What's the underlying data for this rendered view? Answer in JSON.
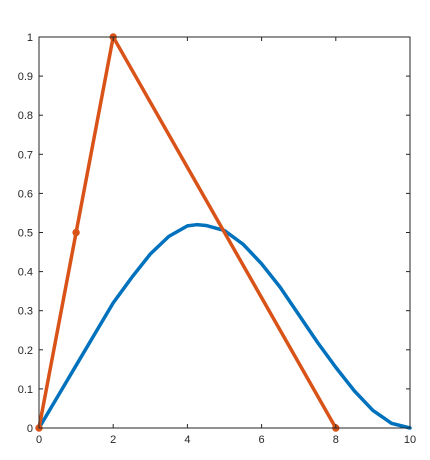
{
  "chart_data": {
    "type": "line",
    "xlim": [
      0,
      10
    ],
    "ylim": [
      0,
      1
    ],
    "xticks": [
      "0",
      "2",
      "4",
      "6",
      "8",
      "10"
    ],
    "yticks": [
      "0",
      "0.1",
      "0.2",
      "0.3",
      "0.4",
      "0.5",
      "0.6",
      "0.7",
      "0.8",
      "0.9",
      "1"
    ],
    "grid": false,
    "series": [
      {
        "color": "#0072BD",
        "markers": false,
        "points": [
          [
            0,
            0
          ],
          [
            0.5,
            0.08
          ],
          [
            1,
            0.16
          ],
          [
            1.5,
            0.24
          ],
          [
            2,
            0.32
          ],
          [
            2.5,
            0.385
          ],
          [
            3,
            0.445
          ],
          [
            3.5,
            0.49
          ],
          [
            4,
            0.517
          ],
          [
            4.25,
            0.52
          ],
          [
            4.5,
            0.518
          ],
          [
            5,
            0.505
          ],
          [
            5.5,
            0.47
          ],
          [
            6,
            0.42
          ],
          [
            6.5,
            0.36
          ],
          [
            7,
            0.29
          ],
          [
            7.5,
            0.22
          ],
          [
            8,
            0.155
          ],
          [
            8.5,
            0.095
          ],
          [
            9,
            0.045
          ],
          [
            9.5,
            0.012
          ],
          [
            10,
            0
          ]
        ]
      },
      {
        "color": "#D95319",
        "markers": true,
        "points": [
          [
            0,
            0
          ],
          [
            1,
            0.5
          ],
          [
            2,
            1
          ],
          [
            8,
            0
          ]
        ]
      }
    ]
  }
}
